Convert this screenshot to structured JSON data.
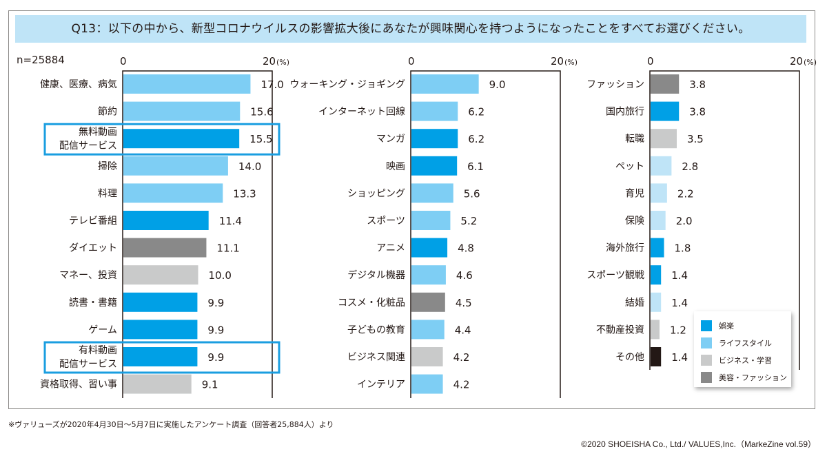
{
  "title": "Q13：以下の中から、新型コロナウイルスの影響拡大後にあなたが興味関心を持つようになったことをすべてお選びください。",
  "n_label": "n=25884",
  "footnote": "※ヴァリューズが2020年4月30日～5月7日に実施したアンケート調査（回答者25,884人）より",
  "copyright": "©2020 SHOEISHA Co., Ltd./ VALUES,Inc.（MarkeZine vol.59）",
  "colors": {
    "entertainment": "#00a0e6",
    "lifestyle": "#7ecef4",
    "lifestyle_pale": "#bfe4f7",
    "business": "#c9caca",
    "beauty": "#898989",
    "other": "#231815",
    "highlight": "#1a9ee0",
    "title_band": "#bfe4f7"
  },
  "legend": [
    {
      "label": "娯楽",
      "category": "entertainment"
    },
    {
      "label": "ライフスタイル",
      "category": "lifestyle"
    },
    {
      "label": "ビジネス・学習",
      "category": "business"
    },
    {
      "label": "美容・ファッション",
      "category": "beauty"
    }
  ],
  "chart_data": {
    "type": "bar",
    "orientation": "horizontal",
    "title": "Q13：以下の中から、新型コロナウイルスの影響拡大後にあなたが興味関心を持つようになったことをすべてお選びください。",
    "xlabel": "(%)",
    "xlim": [
      0,
      20
    ],
    "ticks": [
      "0",
      "20"
    ],
    "tick_unit": "(%)",
    "legend_position": "bottom-right",
    "panels": [
      {
        "items": [
          {
            "label": "健康、医療、病気",
            "value": 17.0,
            "value_label": "17.0",
            "category": "lifestyle"
          },
          {
            "label": "節約",
            "value": 15.6,
            "value_label": "15.6",
            "category": "lifestyle"
          },
          {
            "label": "無料動画\n配信サービス",
            "value": 15.5,
            "value_label": "15.5",
            "category": "entertainment",
            "highlighted": true
          },
          {
            "label": "掃除",
            "value": 14.0,
            "value_label": "14.0",
            "category": "lifestyle"
          },
          {
            "label": "料理",
            "value": 13.3,
            "value_label": "13.3",
            "category": "lifestyle"
          },
          {
            "label": "テレビ番組",
            "value": 11.4,
            "value_label": "11.4",
            "category": "entertainment"
          },
          {
            "label": "ダイエット",
            "value": 11.1,
            "value_label": "11.1",
            "category": "beauty"
          },
          {
            "label": "マネー、投資",
            "value": 10.0,
            "value_label": "10.0",
            "category": "business"
          },
          {
            "label": "読書・書籍",
            "value": 9.9,
            "value_label": "9.9",
            "category": "entertainment"
          },
          {
            "label": "ゲーム",
            "value": 9.9,
            "value_label": "9.9",
            "category": "entertainment"
          },
          {
            "label": "有料動画\n配信サービス",
            "value": 9.9,
            "value_label": "9.9",
            "category": "entertainment",
            "highlighted": true
          },
          {
            "label": "資格取得、習い事",
            "value": 9.1,
            "value_label": "9.1",
            "category": "business"
          }
        ]
      },
      {
        "items": [
          {
            "label": "ウォーキング・ジョギング",
            "value": 9.0,
            "value_label": "9.0",
            "category": "lifestyle"
          },
          {
            "label": "インターネット回線",
            "value": 6.2,
            "value_label": "6.2",
            "category": "lifestyle"
          },
          {
            "label": "マンガ",
            "value": 6.2,
            "value_label": "6.2",
            "category": "entertainment"
          },
          {
            "label": "映画",
            "value": 6.1,
            "value_label": "6.1",
            "category": "entertainment"
          },
          {
            "label": "ショッピング",
            "value": 5.6,
            "value_label": "5.6",
            "category": "lifestyle"
          },
          {
            "label": "スポーツ",
            "value": 5.2,
            "value_label": "5.2",
            "category": "lifestyle"
          },
          {
            "label": "アニメ",
            "value": 4.8,
            "value_label": "4.8",
            "category": "entertainment"
          },
          {
            "label": "デジタル機器",
            "value": 4.6,
            "value_label": "4.6",
            "category": "lifestyle"
          },
          {
            "label": "コスメ・化粧品",
            "value": 4.5,
            "value_label": "4.5",
            "category": "beauty"
          },
          {
            "label": "子どもの教育",
            "value": 4.4,
            "value_label": "4.4",
            "category": "lifestyle"
          },
          {
            "label": "ビジネス関連",
            "value": 4.2,
            "value_label": "4.2",
            "category": "business"
          },
          {
            "label": "インテリア",
            "value": 4.2,
            "value_label": "4.2",
            "category": "lifestyle"
          }
        ]
      },
      {
        "items": [
          {
            "label": "ファッション",
            "value": 3.8,
            "value_label": "3.8",
            "category": "beauty"
          },
          {
            "label": "国内旅行",
            "value": 3.8,
            "value_label": "3.8",
            "category": "entertainment"
          },
          {
            "label": "転職",
            "value": 3.5,
            "value_label": "3.5",
            "category": "business"
          },
          {
            "label": "ペット",
            "value": 2.8,
            "value_label": "2.8",
            "category": "lifestyle_pale"
          },
          {
            "label": "育児",
            "value": 2.2,
            "value_label": "2.2",
            "category": "lifestyle_pale"
          },
          {
            "label": "保険",
            "value": 2.0,
            "value_label": "2.0",
            "category": "lifestyle_pale"
          },
          {
            "label": "海外旅行",
            "value": 1.8,
            "value_label": "1.8",
            "category": "entertainment"
          },
          {
            "label": "スポーツ観戦",
            "value": 1.4,
            "value_label": "1.4",
            "category": "entertainment"
          },
          {
            "label": "結婚",
            "value": 1.4,
            "value_label": "1.4",
            "category": "lifestyle_pale"
          },
          {
            "label": "不動産投資",
            "value": 1.2,
            "value_label": "1.2",
            "category": "business"
          },
          {
            "label": "その他",
            "value": 1.4,
            "value_label": "1.4",
            "category": "other"
          }
        ]
      }
    ]
  }
}
